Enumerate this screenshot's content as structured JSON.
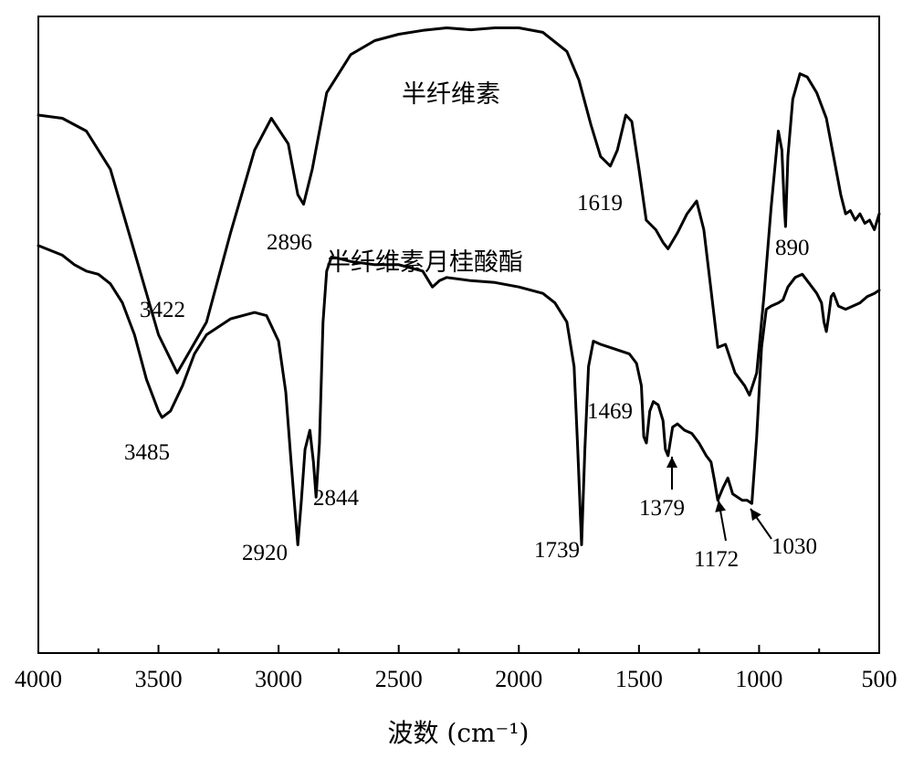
{
  "chart_data": {
    "type": "line",
    "xlabel": "波数 (cm⁻¹)",
    "x_reversed": true,
    "xlim": [
      4000,
      500
    ],
    "x_ticks": [
      4000,
      3500,
      3000,
      2500,
      2000,
      1500,
      1000,
      500
    ],
    "y_ticks": false,
    "series": [
      {
        "name": "半纤维素",
        "points": [
          [
            4000,
            0.845
          ],
          [
            3900,
            0.84
          ],
          [
            3800,
            0.82
          ],
          [
            3700,
            0.76
          ],
          [
            3600,
            0.63
          ],
          [
            3500,
            0.5
          ],
          [
            3422,
            0.44
          ],
          [
            3300,
            0.52
          ],
          [
            3200,
            0.66
          ],
          [
            3100,
            0.79
          ],
          [
            3030,
            0.84
          ],
          [
            2960,
            0.8
          ],
          [
            2920,
            0.72
          ],
          [
            2896,
            0.705
          ],
          [
            2860,
            0.76
          ],
          [
            2800,
            0.88
          ],
          [
            2700,
            0.94
          ],
          [
            2600,
            0.962
          ],
          [
            2500,
            0.972
          ],
          [
            2400,
            0.978
          ],
          [
            2300,
            0.982
          ],
          [
            2200,
            0.979
          ],
          [
            2100,
            0.982
          ],
          [
            2000,
            0.982
          ],
          [
            1900,
            0.975
          ],
          [
            1800,
            0.945
          ],
          [
            1750,
            0.9
          ],
          [
            1700,
            0.83
          ],
          [
            1660,
            0.78
          ],
          [
            1619,
            0.765
          ],
          [
            1590,
            0.79
          ],
          [
            1555,
            0.845
          ],
          [
            1530,
            0.835
          ],
          [
            1500,
            0.76
          ],
          [
            1470,
            0.68
          ],
          [
            1430,
            0.665
          ],
          [
            1400,
            0.645
          ],
          [
            1379,
            0.635
          ],
          [
            1340,
            0.66
          ],
          [
            1300,
            0.69
          ],
          [
            1260,
            0.71
          ],
          [
            1230,
            0.665
          ],
          [
            1200,
            0.57
          ],
          [
            1172,
            0.48
          ],
          [
            1140,
            0.485
          ],
          [
            1100,
            0.44
          ],
          [
            1060,
            0.42
          ],
          [
            1040,
            0.405
          ],
          [
            1010,
            0.44
          ],
          [
            980,
            0.56
          ],
          [
            950,
            0.7
          ],
          [
            920,
            0.82
          ],
          [
            905,
            0.79
          ],
          [
            895,
            0.7
          ],
          [
            890,
            0.67
          ],
          [
            880,
            0.78
          ],
          [
            860,
            0.87
          ],
          [
            830,
            0.91
          ],
          [
            800,
            0.905
          ],
          [
            760,
            0.88
          ],
          [
            720,
            0.84
          ],
          [
            690,
            0.78
          ],
          [
            660,
            0.72
          ],
          [
            640,
            0.69
          ],
          [
            620,
            0.695
          ],
          [
            600,
            0.68
          ],
          [
            580,
            0.69
          ],
          [
            560,
            0.675
          ],
          [
            540,
            0.68
          ],
          [
            520,
            0.665
          ],
          [
            500,
            0.69
          ]
        ]
      },
      {
        "name": "半纤维素月桂酸酯",
        "points": [
          [
            4000,
            0.64
          ],
          [
            3900,
            0.625
          ],
          [
            3850,
            0.61
          ],
          [
            3800,
            0.6
          ],
          [
            3750,
            0.595
          ],
          [
            3700,
            0.58
          ],
          [
            3650,
            0.55
          ],
          [
            3600,
            0.5
          ],
          [
            3550,
            0.43
          ],
          [
            3500,
            0.38
          ],
          [
            3485,
            0.37
          ],
          [
            3450,
            0.38
          ],
          [
            3400,
            0.42
          ],
          [
            3350,
            0.47
          ],
          [
            3300,
            0.5
          ],
          [
            3200,
            0.525
          ],
          [
            3100,
            0.535
          ],
          [
            3050,
            0.53
          ],
          [
            3000,
            0.49
          ],
          [
            2970,
            0.41
          ],
          [
            2950,
            0.31
          ],
          [
            2935,
            0.24
          ],
          [
            2920,
            0.17
          ],
          [
            2905,
            0.24
          ],
          [
            2890,
            0.32
          ],
          [
            2870,
            0.35
          ],
          [
            2855,
            0.3
          ],
          [
            2844,
            0.245
          ],
          [
            2830,
            0.33
          ],
          [
            2815,
            0.52
          ],
          [
            2800,
            0.6
          ],
          [
            2780,
            0.622
          ],
          [
            2750,
            0.62
          ],
          [
            2700,
            0.615
          ],
          [
            2600,
            0.61
          ],
          [
            2500,
            0.61
          ],
          [
            2400,
            0.6
          ],
          [
            2360,
            0.575
          ],
          [
            2330,
            0.585
          ],
          [
            2300,
            0.59
          ],
          [
            2200,
            0.585
          ],
          [
            2100,
            0.582
          ],
          [
            2000,
            0.575
          ],
          [
            1900,
            0.565
          ],
          [
            1850,
            0.55
          ],
          [
            1800,
            0.52
          ],
          [
            1770,
            0.45
          ],
          [
            1755,
            0.32
          ],
          [
            1739,
            0.17
          ],
          [
            1725,
            0.32
          ],
          [
            1710,
            0.45
          ],
          [
            1690,
            0.49
          ],
          [
            1660,
            0.485
          ],
          [
            1620,
            0.48
          ],
          [
            1580,
            0.475
          ],
          [
            1540,
            0.47
          ],
          [
            1510,
            0.455
          ],
          [
            1490,
            0.42
          ],
          [
            1480,
            0.34
          ],
          [
            1469,
            0.33
          ],
          [
            1455,
            0.38
          ],
          [
            1440,
            0.395
          ],
          [
            1420,
            0.39
          ],
          [
            1400,
            0.365
          ],
          [
            1390,
            0.32
          ],
          [
            1379,
            0.31
          ],
          [
            1360,
            0.355
          ],
          [
            1340,
            0.36
          ],
          [
            1310,
            0.35
          ],
          [
            1280,
            0.345
          ],
          [
            1250,
            0.33
          ],
          [
            1220,
            0.31
          ],
          [
            1200,
            0.3
          ],
          [
            1185,
            0.27
          ],
          [
            1172,
            0.24
          ],
          [
            1150,
            0.26
          ],
          [
            1130,
            0.275
          ],
          [
            1110,
            0.25
          ],
          [
            1090,
            0.245
          ],
          [
            1070,
            0.24
          ],
          [
            1050,
            0.24
          ],
          [
            1030,
            0.235
          ],
          [
            1010,
            0.34
          ],
          [
            990,
            0.48
          ],
          [
            970,
            0.54
          ],
          [
            950,
            0.545
          ],
          [
            920,
            0.55
          ],
          [
            900,
            0.555
          ],
          [
            880,
            0.575
          ],
          [
            850,
            0.59
          ],
          [
            820,
            0.595
          ],
          [
            790,
            0.58
          ],
          [
            760,
            0.565
          ],
          [
            740,
            0.55
          ],
          [
            730,
            0.52
          ],
          [
            720,
            0.505
          ],
          [
            710,
            0.53
          ],
          [
            700,
            0.56
          ],
          [
            690,
            0.565
          ],
          [
            670,
            0.545
          ],
          [
            640,
            0.54
          ],
          [
            610,
            0.545
          ],
          [
            580,
            0.55
          ],
          [
            550,
            0.56
          ],
          [
            520,
            0.565
          ],
          [
            500,
            0.57
          ]
        ]
      }
    ],
    "series_labels": [
      "半纤维素",
      "半纤维素月桂酸酯"
    ],
    "peak_labels": [
      "2896",
      "3422",
      "1619",
      "890",
      "3485",
      "2920",
      "2844",
      "1739",
      "1469",
      "1379",
      "1172",
      "1030"
    ]
  }
}
